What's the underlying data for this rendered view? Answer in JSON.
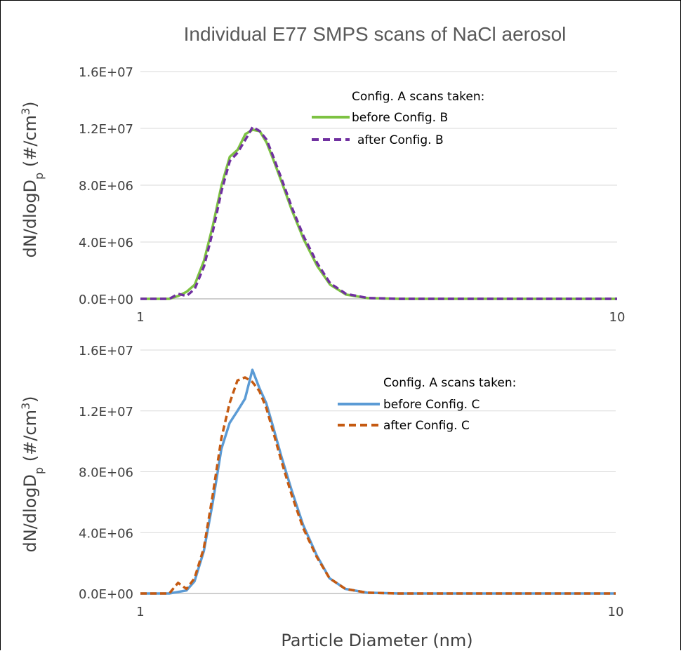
{
  "chart_data": [
    {
      "type": "line",
      "title": "Individual E77 SMPS scans of NaCl aerosol",
      "xlabel": "",
      "ylabel": "dN/dlogDp (#/cm3)",
      "ylabel_parts": {
        "main": "dN/dlogD",
        "sub": "p",
        "unit": " (#/cm",
        "sup": "3",
        "close": ")"
      },
      "x_scale": "log",
      "xlim": [
        1,
        10
      ],
      "ylim": [
        0,
        16000000
      ],
      "x_ticks": [
        "1",
        "10"
      ],
      "y_ticks": [
        "0.0E+00",
        "4.0E+06",
        "8.0E+06",
        "1.2E+07",
        "1.6E+07"
      ],
      "y_tick_values": [
        0,
        4000000,
        8000000,
        12000000,
        16000000
      ],
      "grid": "horizontal",
      "legend_title": "Config. A scans taken:",
      "legend_position": "top-right",
      "series": [
        {
          "name": "before Config. B",
          "color": "#7dc242",
          "style": "solid",
          "x": [
            1.0,
            1.15,
            1.2,
            1.25,
            1.3,
            1.36,
            1.42,
            1.48,
            1.54,
            1.6,
            1.66,
            1.72,
            1.78,
            1.84,
            1.9,
            1.98,
            2.08,
            2.2,
            2.35,
            2.5,
            2.7,
            3.0,
            3.5,
            10
          ],
          "values": [
            0,
            0,
            200000,
            500000,
            1000000,
            2700000,
            5200000,
            8000000,
            10000000,
            10500000,
            11600000,
            11900000,
            11800000,
            11000000,
            9800000,
            8200000,
            6200000,
            4200000,
            2300000,
            1000000,
            300000,
            50000,
            0,
            0
          ]
        },
        {
          "name": "after Config. B",
          "color": "#7030a0",
          "style": "dashed",
          "x": [
            1.0,
            1.15,
            1.2,
            1.25,
            1.3,
            1.36,
            1.42,
            1.48,
            1.54,
            1.6,
            1.66,
            1.72,
            1.78,
            1.84,
            1.9,
            1.98,
            2.08,
            2.2,
            2.35,
            2.5,
            2.7,
            3.0,
            3.5,
            10
          ],
          "values": [
            0,
            0,
            350000,
            200000,
            700000,
            2300000,
            4800000,
            7600000,
            9700000,
            10300000,
            11200000,
            12100000,
            11800000,
            11200000,
            10000000,
            8400000,
            6400000,
            4400000,
            2500000,
            1100000,
            350000,
            60000,
            0,
            0
          ]
        },
        {
          "name": "before Config. C",
          "color": "#5b9bd5",
          "style": "solid",
          "x": [
            1.0,
            1.15,
            1.2,
            1.25,
            1.3,
            1.36,
            1.42,
            1.48,
            1.54,
            1.6,
            1.66,
            1.72,
            1.78,
            1.84,
            1.9,
            1.98,
            2.08,
            2.2,
            2.35,
            2.5,
            2.7,
            3.0,
            3.5,
            10
          ],
          "values": [
            0,
            0,
            100000,
            200000,
            800000,
            2800000,
            6000000,
            9500000,
            11200000,
            12000000,
            12800000,
            14700000,
            13500000,
            12500000,
            11000000,
            9000000,
            6800000,
            4500000,
            2500000,
            1000000,
            300000,
            50000,
            0,
            0
          ]
        },
        {
          "name": "after Config. C",
          "color": "#c55a11",
          "style": "dashed",
          "x": [
            1.0,
            1.15,
            1.2,
            1.25,
            1.3,
            1.36,
            1.42,
            1.48,
            1.54,
            1.6,
            1.66,
            1.72,
            1.78,
            1.84,
            1.9,
            1.98,
            2.08,
            2.2,
            2.35,
            2.5,
            2.7,
            3.0,
            3.5,
            10
          ],
          "values": [
            0,
            0,
            700000,
            300000,
            1000000,
            3000000,
            6500000,
            10200000,
            12500000,
            14000000,
            14200000,
            13900000,
            13300000,
            12200000,
            10700000,
            8700000,
            6500000,
            4300000,
            2400000,
            1000000,
            300000,
            50000,
            0,
            0
          ]
        }
      ]
    },
    {
      "type": "line",
      "title": "",
      "xlabel": "Particle Diameter (nm)",
      "ylabel": "dN/dlogDp (#/cm3)",
      "x_scale": "log",
      "xlim": [
        1,
        10
      ],
      "ylim": [
        0,
        16000000
      ]
    }
  ],
  "top_panel": {
    "x_ticks": [
      "1",
      "10"
    ],
    "y_ticks": [
      "0.0E+00",
      "4.0E+06",
      "8.0E+06",
      "1.2E+07",
      "1.6E+07"
    ],
    "legend_title": "Config. A scans taken:",
    "legend_items": [
      "before Config. B",
      "after Config. B"
    ]
  },
  "bottom_panel": {
    "x_ticks": [
      "1",
      "10"
    ],
    "y_ticks": [
      "0.0E+00",
      "4.0E+06",
      "8.0E+06",
      "1.2E+07",
      "1.6E+07"
    ],
    "legend_title": "Config. A scans taken:",
    "legend_items": [
      "before Config. C",
      "after Config. C"
    ],
    "xlabel": "Particle Diameter (nm)"
  },
  "ylabel_parts": {
    "main": "dN/dlogD",
    "sub": "p",
    "unit": " (#/cm",
    "sup": "3",
    "close": ")"
  }
}
